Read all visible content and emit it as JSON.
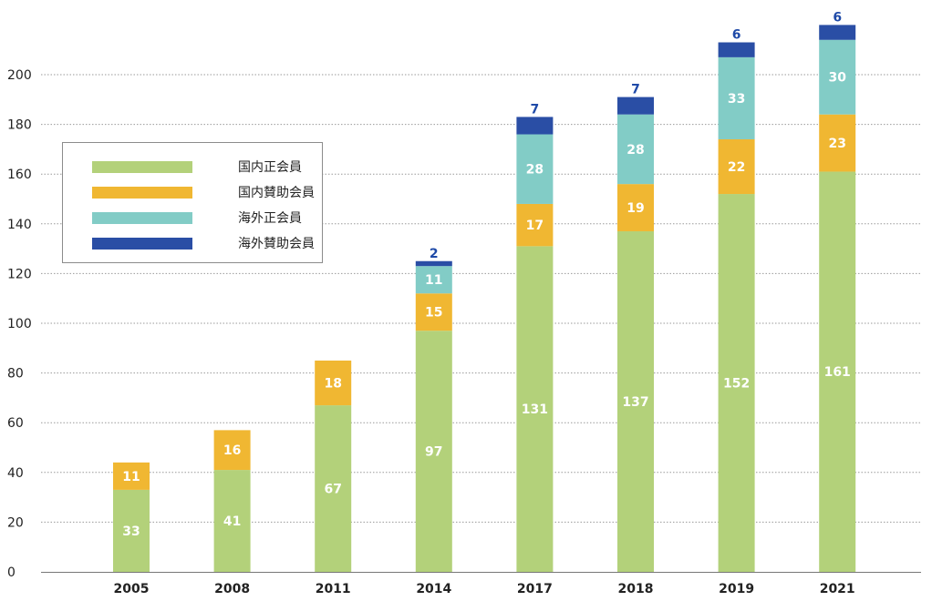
{
  "chart_data": {
    "type": "bar",
    "stacked": true,
    "title": "",
    "xlabel": "",
    "ylabel": "",
    "categories": [
      "2005",
      "2008",
      "2011",
      "2014",
      "2017",
      "2018",
      "2019",
      "2021"
    ],
    "series": [
      {
        "name": "国内正会員",
        "color": "#b3d17a",
        "values": [
          33,
          41,
          67,
          97,
          131,
          137,
          152,
          161
        ]
      },
      {
        "name": "国内賛助会員",
        "color": "#f0b732",
        "values": [
          11,
          16,
          18,
          15,
          17,
          19,
          22,
          23
        ]
      },
      {
        "name": "海外正会員",
        "color": "#82ccc6",
        "values": [
          0,
          0,
          0,
          11,
          28,
          28,
          33,
          30
        ]
      },
      {
        "name": "海外賛助会員",
        "color": "#2a4ea5",
        "values": [
          0,
          0,
          0,
          2,
          7,
          7,
          6,
          6
        ]
      }
    ],
    "ylim": [
      0,
      220
    ],
    "yticks": [
      0,
      20,
      40,
      60,
      80,
      100,
      120,
      140,
      160,
      180,
      200
    ],
    "grid": true,
    "legend": "top-left"
  }
}
